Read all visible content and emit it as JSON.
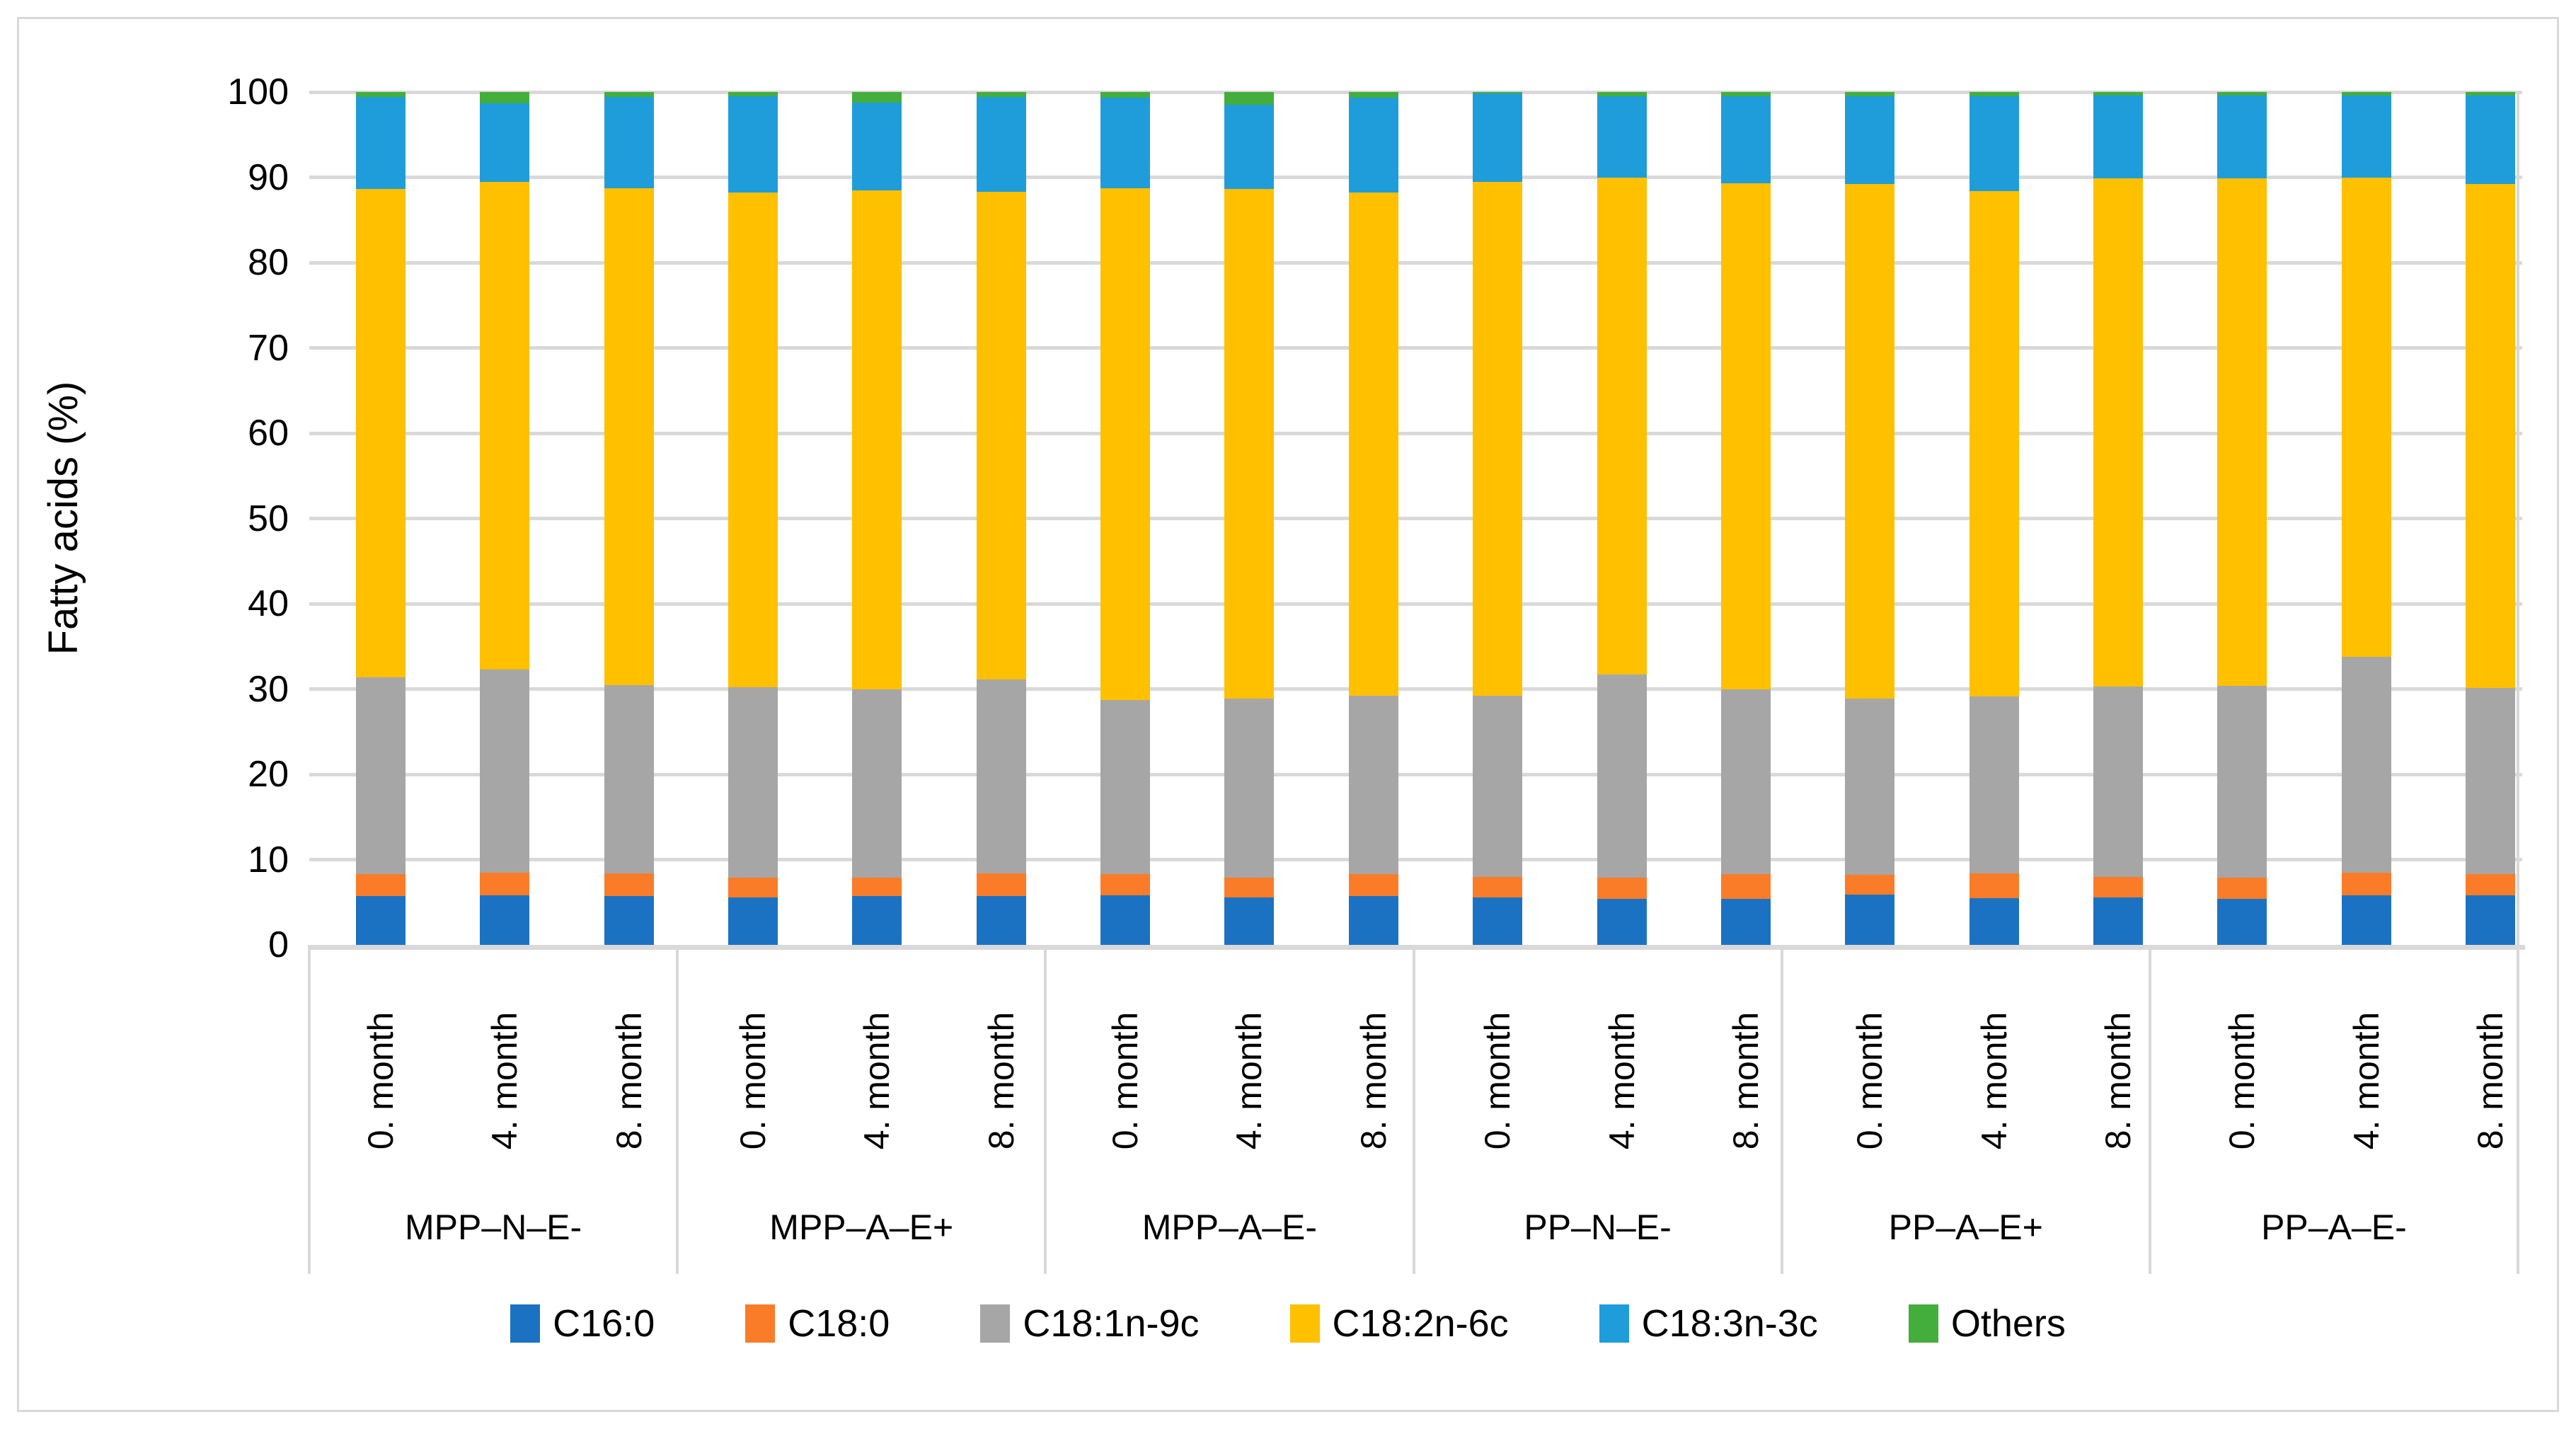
{
  "figure": {
    "background": "#ffffff",
    "border_color": "#d9d9d9"
  },
  "chart_data": {
    "type": "bar",
    "stacked": true,
    "title": "",
    "xlabel": "",
    "ylabel": "Fatty acids (%)",
    "ylim": [
      0,
      100
    ],
    "yticks": [
      0,
      10,
      20,
      30,
      40,
      50,
      60,
      70,
      80,
      90,
      100
    ],
    "grid": true,
    "gridline_color": "#d9d9d9",
    "axis_line_color": "#d9d9d9",
    "legend_position": "bottom",
    "groups": [
      "MPP–N–E-",
      "MPP–A–E+",
      "MPP–A–E-",
      "PP–N–E-",
      "PP–A–E+",
      "PP–A–E-"
    ],
    "categories_per_group": [
      "0. month",
      "4. month",
      "8. month"
    ],
    "series": [
      {
        "name": "C16:0",
        "color": "#1b72c2",
        "values": [
          5.7,
          5.8,
          5.7,
          5.6,
          5.7,
          5.7,
          5.8,
          5.6,
          5.7,
          5.6,
          5.4,
          5.4,
          5.9,
          5.5,
          5.6,
          5.4,
          5.8,
          5.8
        ]
      },
      {
        "name": "C18:0",
        "color": "#fb7c28",
        "values": [
          2.6,
          2.7,
          2.7,
          2.3,
          2.2,
          2.7,
          2.5,
          2.3,
          2.6,
          2.4,
          2.5,
          2.9,
          2.3,
          2.9,
          2.4,
          2.5,
          2.7,
          2.5
        ]
      },
      {
        "name": "C18:1n-9c",
        "color": "#a6a6a6",
        "values": [
          23.1,
          23.8,
          22.1,
          22.3,
          22.1,
          22.7,
          20.4,
          21.0,
          20.9,
          21.2,
          23.8,
          21.7,
          20.7,
          20.7,
          22.3,
          22.5,
          25.3,
          21.8
        ]
      },
      {
        "name": "C18:2n-6c",
        "color": "#ffc000",
        "values": [
          57.2,
          57.2,
          58.2,
          58.0,
          58.5,
          57.2,
          60.0,
          59.7,
          59.0,
          60.3,
          58.3,
          59.3,
          60.3,
          59.3,
          59.6,
          59.5,
          56.2,
          59.1
        ]
      },
      {
        "name": "C18:3n-3c",
        "color": "#1f9ddb",
        "values": [
          10.8,
          9.2,
          10.7,
          11.3,
          10.3,
          11.1,
          10.6,
          9.9,
          11.1,
          10.3,
          9.5,
          10.2,
          10.3,
          11.1,
          9.7,
          9.7,
          9.6,
          10.4
        ]
      },
      {
        "name": "Others",
        "color": "#43ae3c",
        "values": [
          0.6,
          1.3,
          0.6,
          0.5,
          1.2,
          0.6,
          0.7,
          1.5,
          0.7,
          0.2,
          0.5,
          0.5,
          0.5,
          0.5,
          0.4,
          0.4,
          0.4,
          0.4
        ]
      }
    ]
  }
}
